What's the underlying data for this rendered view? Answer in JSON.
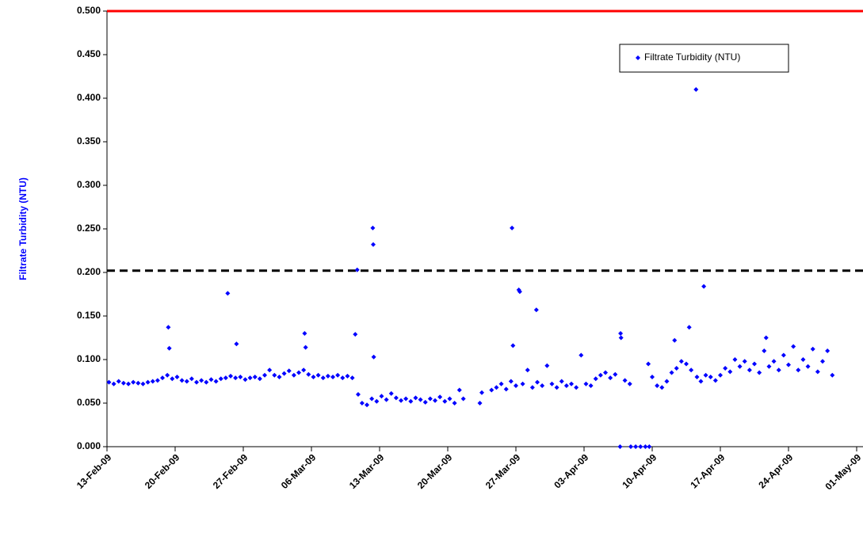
{
  "chart_data": {
    "type": "scatter",
    "y_label": "Filtrate Turbidity (NTU)",
    "x": [
      39857.2,
      39857.7,
      39858.2,
      39858.7,
      39859.2,
      39859.7,
      39860.2,
      39860.7,
      39861.2,
      39861.7,
      39862.2,
      39862.7,
      39863.2,
      39863.3,
      39863.4,
      39863.7,
      39864.2,
      39864.7,
      39865.2,
      39865.7,
      39866.2,
      39866.7,
      39867.2,
      39867.7,
      39868.2,
      39868.7,
      39869.2,
      39869.4,
      39869.7,
      39870.2,
      39870.3,
      39870.7,
      39871.2,
      39871.7,
      39872.2,
      39872.7,
      39873.2,
      39873.7,
      39874.2,
      39874.7,
      39875.2,
      39875.7,
      39876.2,
      39876.7,
      39877.2,
      39877.3,
      39877.4,
      39877.7,
      39878.2,
      39878.7,
      39879.2,
      39879.7,
      39880.2,
      39880.7,
      39881.2,
      39881.7,
      39882.2,
      39882.5,
      39882.7,
      39882.8,
      39883.2,
      39883.7,
      39884.2,
      39884.3,
      39884.35,
      39884.4,
      39884.7,
      39885.2,
      39885.7,
      39886.2,
      39886.7,
      39887.2,
      39887.7,
      39888.2,
      39888.7,
      39889.2,
      39889.7,
      39890.2,
      39890.7,
      39891.2,
      39891.7,
      39892.2,
      39892.7,
      39893.2,
      39893.6,
      39895.3,
      39895.5,
      39896.5,
      39897.0,
      39897.5,
      39898.0,
      39898.5,
      39898.6,
      39898.7,
      39899.0,
      39899.3,
      39899.4,
      39899.7,
      39900.2,
      39900.7,
      39901.1,
      39901.2,
      39901.7,
      39902.2,
      39902.7,
      39903.2,
      39903.7,
      39904.2,
      39904.7,
      39905.2,
      39905.7,
      39906.2,
      39906.7,
      39907.2,
      39907.7,
      39908.2,
      39908.7,
      39909.2,
      39909.75,
      39909.8,
      39910.2,
      39910.7,
      39909.7,
      39910.8,
      39911.3,
      39911.8,
      39912.3,
      39912.7,
      39912.6,
      39913.0,
      39913.5,
      39914.0,
      39914.5,
      39915.0,
      39915.3,
      39915.5,
      39916.0,
      39916.5,
      39916.8,
      39917.0,
      39917.5,
      39917.6,
      39918.0,
      39918.3,
      39918.5,
      39919.0,
      39919.5,
      39920.0,
      39920.5,
      39921.0,
      39921.5,
      39922.0,
      39922.5,
      39923.0,
      39923.5,
      39924.0,
      39924.5,
      39924.7,
      39925.0,
      39925.5,
      39926.0,
      39926.5,
      39927.0,
      39927.5,
      39928.0,
      39928.5,
      39929.0,
      39929.5,
      39930.0,
      39930.5,
      39931.0,
      39931.5
    ],
    "series": [
      {
        "name": "Filtrate Turbidity (NTU)",
        "color": "#0000ff",
        "values": [
          0.074,
          0.072,
          0.075,
          0.073,
          0.072,
          0.074,
          0.073,
          0.072,
          0.074,
          0.075,
          0.076,
          0.079,
          0.082,
          0.137,
          0.113,
          0.078,
          0.08,
          0.076,
          0.075,
          0.078,
          0.074,
          0.076,
          0.074,
          0.077,
          0.075,
          0.078,
          0.079,
          0.176,
          0.081,
          0.079,
          0.118,
          0.08,
          0.077,
          0.079,
          0.08,
          0.078,
          0.082,
          0.088,
          0.082,
          0.08,
          0.084,
          0.087,
          0.082,
          0.085,
          0.088,
          0.13,
          0.114,
          0.083,
          0.08,
          0.082,
          0.079,
          0.081,
          0.08,
          0.082,
          0.079,
          0.081,
          0.079,
          0.129,
          0.203,
          0.06,
          0.05,
          0.048,
          0.055,
          0.251,
          0.232,
          0.103,
          0.052,
          0.058,
          0.054,
          0.061,
          0.056,
          0.053,
          0.055,
          0.052,
          0.056,
          0.054,
          0.051,
          0.055,
          0.053,
          0.057,
          0.052,
          0.055,
          0.05,
          0.065,
          0.055,
          0.05,
          0.062,
          0.065,
          0.068,
          0.072,
          0.066,
          0.075,
          0.251,
          0.116,
          0.07,
          0.18,
          0.178,
          0.072,
          0.088,
          0.068,
          0.157,
          0.074,
          0.07,
          0.093,
          0.072,
          0.068,
          0.075,
          0.07,
          0.072,
          0.068,
          0.105,
          0.072,
          0.07,
          0.078,
          0.082,
          0.085,
          0.079,
          0.083,
          0.13,
          0.125,
          0.076,
          0.072,
          0,
          0,
          0,
          0,
          0,
          0,
          0.095,
          0.08,
          0.07,
          0.068,
          0.075,
          0.085,
          0.122,
          0.09,
          0.098,
          0.095,
          0.137,
          0.088,
          0.41,
          0.08,
          0.075,
          0.184,
          0.082,
          0.08,
          0.076,
          0.082,
          0.09,
          0.086,
          0.1,
          0.092,
          0.098,
          0.088,
          0.095,
          0.085,
          0.11,
          0.125,
          0.092,
          0.098,
          0.088,
          0.105,
          0.094,
          0.115,
          0.088,
          0.1,
          0.092,
          0.112,
          0.086,
          0.098,
          0.11,
          0.082
        ]
      }
    ],
    "xlim": [
      39857,
      39934
    ],
    "xticks": [
      {
        "value": 39857,
        "label": "13-Feb-09"
      },
      {
        "value": 39864,
        "label": "20-Feb-09"
      },
      {
        "value": 39871,
        "label": "27-Feb-09"
      },
      {
        "value": 39878,
        "label": "06-Mar-09"
      },
      {
        "value": 39885,
        "label": "13-Mar-09"
      },
      {
        "value": 39892,
        "label": "20-Mar-09"
      },
      {
        "value": 39899,
        "label": "27-Mar-09"
      },
      {
        "value": 39906,
        "label": "03-Apr-09"
      },
      {
        "value": 39913,
        "label": "10-Apr-09"
      },
      {
        "value": 39920,
        "label": "17-Apr-09"
      },
      {
        "value": 39927,
        "label": "24-Apr-09"
      },
      {
        "value": 39934,
        "label": "01-May-09"
      }
    ],
    "ylim": [
      0,
      0.5
    ],
    "yticks": [
      {
        "value": 0,
        "label": "0.000"
      },
      {
        "value": 0.05,
        "label": "0.050"
      },
      {
        "value": 0.1,
        "label": "0.100"
      },
      {
        "value": 0.15,
        "label": "0.150"
      },
      {
        "value": 0.2,
        "label": "0.200"
      },
      {
        "value": 0.25,
        "label": "0.250"
      },
      {
        "value": 0.3,
        "label": "0.300"
      },
      {
        "value": 0.35,
        "label": "0.350"
      },
      {
        "value": 0.4,
        "label": "0.400"
      },
      {
        "value": 0.45,
        "label": "0.450"
      },
      {
        "value": 0.5,
        "label": "0.500"
      }
    ],
    "reference_lines": [
      {
        "value": 0.5,
        "color": "#ff0000",
        "dashed": false
      },
      {
        "value": 0.202,
        "color": "#000000",
        "dashed": true
      }
    ],
    "legend": "upper right",
    "grid": false
  }
}
